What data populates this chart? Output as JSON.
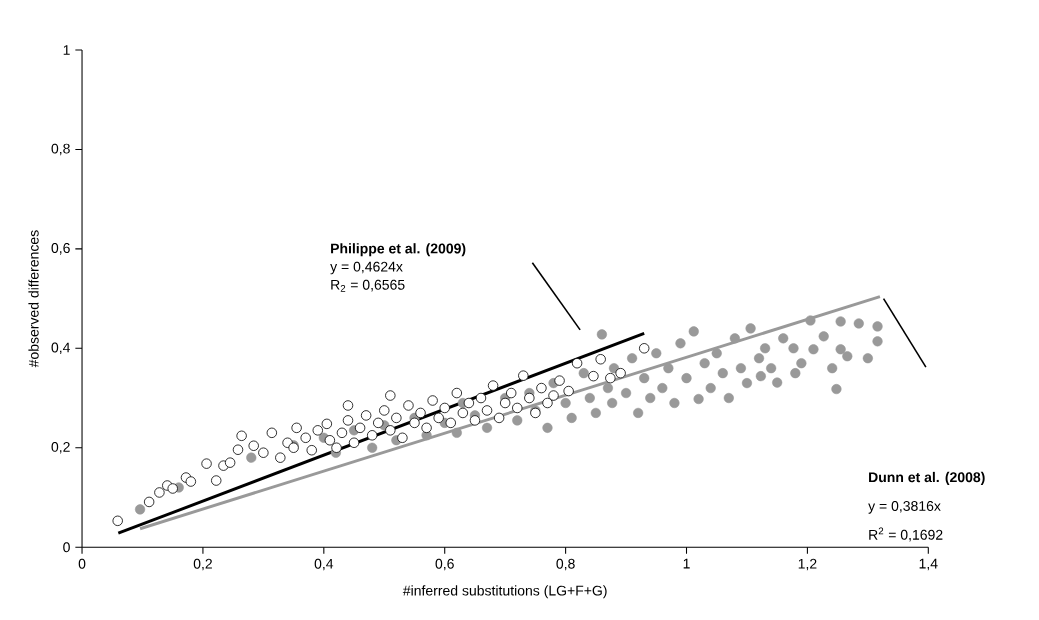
{
  "chart_data": {
    "type": "scatter",
    "xlabel": "#inferred substitutions (LG+F+G)",
    "ylabel": "#observed differences",
    "xlim": [
      0,
      1.4
    ],
    "ylim": [
      0,
      1
    ],
    "xticks": [
      0,
      {
        "value": 0.2,
        "label": "0,2"
      },
      {
        "value": 0.4,
        "label": "0,4"
      },
      {
        "value": 0.6,
        "label": "0,6"
      },
      {
        "value": 0.8,
        "label": "0,8"
      },
      1,
      {
        "value": 1.2,
        "label": "1,2"
      },
      {
        "value": 1.4,
        "label": "1,4"
      }
    ],
    "yticks": [
      0,
      {
        "value": 0.2,
        "label": "0,2"
      },
      {
        "value": 0.4,
        "label": "0,4"
      },
      {
        "value": 0.6,
        "label": "0,6"
      },
      {
        "value": 0.8,
        "label": "0,8"
      },
      1
    ],
    "grid": false,
    "annotations": [
      "Philippe et al. (2009)",
      "y = 0,4624x",
      "R$_{2}$ = 0,6565",
      "Dunn et al. (2008)",
      "y = 0,3816x",
      "R$^{2}$ = 0,1692"
    ],
    "series": [
      {
        "marker": "circle",
        "color": "#999999",
        "x": [
          0.096,
          0.16,
          0.28,
          0.35,
          0.4,
          0.42,
          0.45,
          0.48,
          0.5,
          0.52,
          0.55,
          0.57,
          0.6,
          0.62,
          0.63,
          0.65,
          0.67,
          0.7,
          0.72,
          0.74,
          0.75,
          0.77,
          0.78,
          0.8,
          0.81,
          0.83,
          0.84,
          0.85,
          0.86,
          0.87,
          0.877,
          0.88,
          0.9,
          0.91,
          0.92,
          0.93,
          0.94,
          0.95,
          0.96,
          0.97,
          0.98,
          0.99,
          1.0,
          1.012,
          1.02,
          1.03,
          1.04,
          1.05,
          1.06,
          1.07,
          1.08,
          1.09,
          1.1,
          1.106,
          1.12,
          1.123,
          1.13,
          1.14,
          1.15,
          1.16,
          1.177,
          1.18,
          1.19,
          1.205,
          1.21,
          1.227,
          1.241,
          1.248,
          1.255,
          1.255,
          1.266,
          1.285,
          1.3,
          1.316,
          1.316
        ],
        "values": [
          0.076,
          0.12,
          0.18,
          0.205,
          0.22,
          0.19,
          0.235,
          0.2,
          0.245,
          0.215,
          0.26,
          0.225,
          0.25,
          0.23,
          0.29,
          0.265,
          0.24,
          0.3,
          0.255,
          0.31,
          0.275,
          0.24,
          0.33,
          0.29,
          0.26,
          0.35,
          0.3,
          0.27,
          0.428,
          0.32,
          0.29,
          0.36,
          0.31,
          0.38,
          0.27,
          0.34,
          0.3,
          0.39,
          0.32,
          0.36,
          0.29,
          0.41,
          0.34,
          0.434,
          0.298,
          0.37,
          0.32,
          0.39,
          0.35,
          0.3,
          0.42,
          0.36,
          0.33,
          0.44,
          0.38,
          0.344,
          0.4,
          0.36,
          0.331,
          0.42,
          0.4,
          0.35,
          0.37,
          0.456,
          0.398,
          0.424,
          0.36,
          0.318,
          0.454,
          0.398,
          0.384,
          0.45,
          0.38,
          0.444,
          0.414
        ]
      },
      {
        "marker": "circle",
        "color": "#000000",
        "x": [
          0.059,
          0.111,
          0.128,
          0.141,
          0.15,
          0.172,
          0.18,
          0.206,
          0.222,
          0.234,
          0.245,
          0.258,
          0.264,
          0.284,
          0.3,
          0.314,
          0.328,
          0.34,
          0.35,
          0.355,
          0.37,
          0.38,
          0.39,
          0.405,
          0.41,
          0.421,
          0.43,
          0.44,
          0.44,
          0.45,
          0.46,
          0.47,
          0.48,
          0.49,
          0.5,
          0.51,
          0.51,
          0.52,
          0.53,
          0.54,
          0.55,
          0.56,
          0.57,
          0.58,
          0.59,
          0.6,
          0.61,
          0.62,
          0.63,
          0.64,
          0.65,
          0.66,
          0.67,
          0.68,
          0.69,
          0.7,
          0.71,
          0.72,
          0.73,
          0.74,
          0.75,
          0.76,
          0.77,
          0.78,
          0.79,
          0.805,
          0.819,
          0.846,
          0.858,
          0.874,
          0.891,
          0.93
        ],
        "values": [
          0.053,
          0.091,
          0.11,
          0.124,
          0.118,
          0.14,
          0.132,
          0.168,
          0.134,
          0.164,
          0.17,
          0.196,
          0.224,
          0.204,
          0.19,
          0.23,
          0.18,
          0.21,
          0.2,
          0.24,
          0.22,
          0.195,
          0.235,
          0.248,
          0.215,
          0.2,
          0.23,
          0.255,
          0.285,
          0.21,
          0.24,
          0.265,
          0.225,
          0.25,
          0.275,
          0.235,
          0.305,
          0.26,
          0.22,
          0.285,
          0.25,
          0.27,
          0.24,
          0.295,
          0.26,
          0.28,
          0.25,
          0.31,
          0.27,
          0.29,
          0.255,
          0.3,
          0.275,
          0.325,
          0.26,
          0.29,
          0.31,
          0.28,
          0.345,
          0.3,
          0.27,
          0.32,
          0.29,
          0.305,
          0.335,
          0.314,
          0.37,
          0.344,
          0.378,
          0.34,
          0.35,
          0.4
        ]
      },
      {
        "type": "line",
        "marker": "none",
        "color": "#000000",
        "x": [
          0.06,
          0.93
        ],
        "values": [
          0.028,
          0.43
        ]
      },
      {
        "type": "line",
        "marker": "none",
        "color": "#999999",
        "x": [
          0.096,
          1.32
        ],
        "values": [
          0.037,
          0.504
        ]
      }
    ]
  }
}
